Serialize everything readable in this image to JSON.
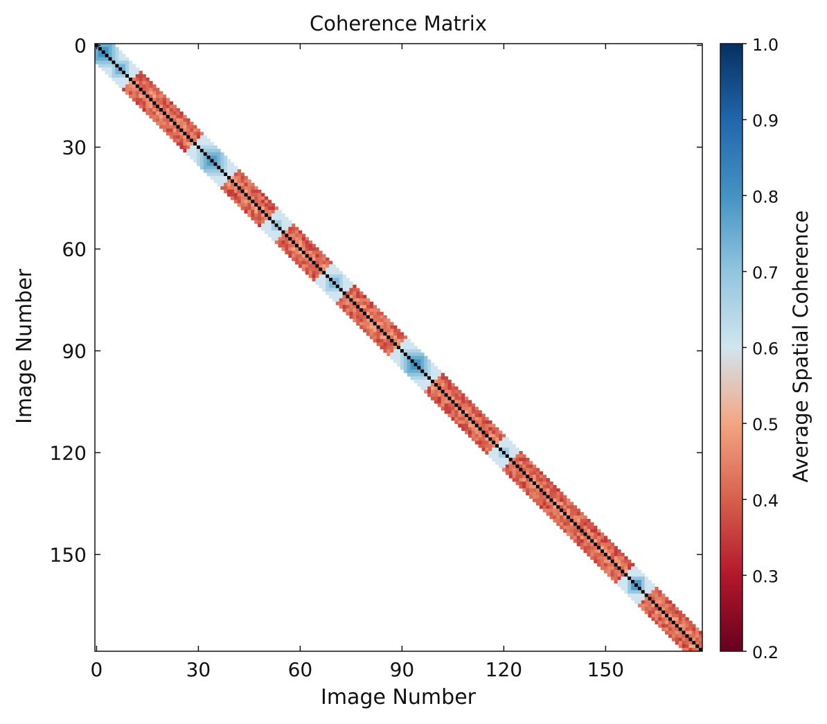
{
  "chart_data": {
    "type": "heatmap",
    "title": "Coherence Matrix",
    "xlabel": "Image Number",
    "ylabel": "Image Number",
    "matrix_size": 179,
    "xlim": [
      0,
      179
    ],
    "ylim": [
      179,
      0
    ],
    "x_ticks": [
      0,
      30,
      60,
      90,
      120,
      150
    ],
    "y_ticks": [
      0,
      30,
      60,
      90,
      120,
      150
    ],
    "band_half_width": 5,
    "off_band_value": null,
    "base_band_value": 0.4,
    "diagonal_value": 1.0,
    "high_coherence_clusters": [
      {
        "center": 2,
        "radius": 4,
        "peak": 0.85
      },
      {
        "center": 7,
        "radius": 2,
        "peak": 0.8
      },
      {
        "center": 34,
        "radius": 4,
        "peak": 0.82
      },
      {
        "center": 53,
        "radius": 1,
        "peak": 0.75
      },
      {
        "center": 70,
        "radius": 2,
        "peak": 0.78
      },
      {
        "center": 94,
        "radius": 4,
        "peak": 0.85
      },
      {
        "center": 120,
        "radius": 1,
        "peak": 0.75
      },
      {
        "center": 159,
        "radius": 2,
        "peak": 0.88
      }
    ],
    "colorbar": {
      "label": "Average Spatial Coherence",
      "min": 0.2,
      "max": 1.0,
      "ticks": [
        0.2,
        0.3,
        0.4,
        0.5,
        0.6,
        0.7,
        0.8,
        0.9,
        1.0
      ],
      "colormap": "RdBu",
      "colors": [
        "#67001f",
        "#b2182b",
        "#d6604d",
        "#f4a582",
        "#d1e5f0",
        "#92c5de",
        "#4393c3",
        "#2166ac",
        "#053061"
      ],
      "discontinuity_at": 0.7
    },
    "grid": false,
    "legend": "none"
  }
}
